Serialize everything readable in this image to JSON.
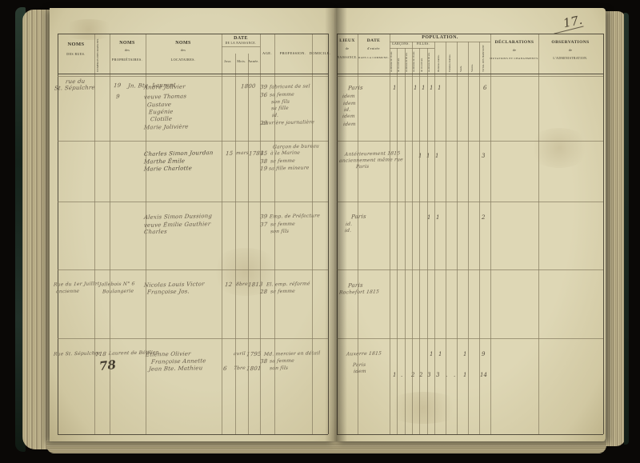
{
  "page_number": "17.",
  "left_headers": {
    "rues1": "NOMS",
    "rues2": "DES RUES.",
    "maisons": "NUMÉROS DES MAISONS.",
    "prop1": "NOMS",
    "prop2": "des",
    "prop3": "PROPRIÉTAIRES.",
    "loc1": "NOMS",
    "loc2": "des",
    "loc3": "LOCATAIRES.",
    "date1": "DATE",
    "date2": "DE LA NAISSANCE.",
    "jour": "Jour.",
    "mois": "Mois.",
    "annee": "Année.",
    "age": "AGE.",
    "profession": "PROFESSION.",
    "domicile": "DOMICILE."
  },
  "right_headers": {
    "lieux1": "LIEUX",
    "lieux2": "de",
    "lieux3": "NAISSANCE.",
    "entree1": "DATE",
    "entree2": "d'entrée",
    "entree3": "DANS LA COMMUNE.",
    "population": "POPULATION.",
    "garcons": "GARÇONS.",
    "filles": "FILLES.",
    "gsub": [
      "au-dessous de 16 ans.",
      "de 16 à 60 ans.",
      "au-dessus de 60 ans."
    ],
    "fsub": [
      "au-dessous de 16 ans.",
      "de 16 à 60 ans.",
      "au-dessus de 60 ans."
    ],
    "etats": [
      "Hommes mariés.",
      "Femmes mariées.",
      "Veufs.",
      "Veuves."
    ],
    "total": "TOTAL DES HABITANTS.",
    "decl1": "DÉCLARATIONS",
    "decl2": "de",
    "decl3": "MUTATIONS ET CHANGEMENTS.",
    "obs1": "OBSERVATIONS",
    "obs2": "de",
    "obs3": "L'ADMINISTRATION."
  },
  "groups": [
    {
      "street1": "rue du",
      "street2": "St. Sépulchre",
      "house": "19",
      "house2": "9",
      "proprietor": "Jn. Bte. Laurent",
      "tenants": [
        "André Jolivier",
        "veuve Thomas",
        "Gustave",
        "Eugénie",
        "Clotille",
        "Marie Jolivière"
      ],
      "annee": "1800",
      "ages": [
        "39",
        "36",
        "29"
      ],
      "professions": [
        "fabricant de sel",
        "sa femme",
        "son fils",
        "sa fille",
        "id.",
        "ouvrière journalière"
      ],
      "birthplaces": [
        "Paris",
        "idem",
        "idem",
        "id.",
        "idem",
        "idem"
      ],
      "marks": [
        "1",
        "1",
        "1",
        "1",
        "1"
      ],
      "total": "6"
    },
    {
      "tenants": [
        "Charles Simon Jourdan",
        "Marthe Émile",
        "Marie Charlotte"
      ],
      "date": [
        "15",
        "mars",
        "1783"
      ],
      "ages": [
        "45",
        "38",
        "19"
      ],
      "professions": [
        "Garçon de bureau",
        "à la Marine",
        "sa femme",
        "sa fille mineure"
      ],
      "notes": [
        "Antérieurement 1815",
        "anciennement même rue",
        "Paris"
      ],
      "marks": [
        "1",
        "1",
        "1"
      ],
      "total": "3"
    },
    {
      "tenants": [
        "Alexis Simon Dussiong",
        "veuve Émilie Gauthier",
        "Charles"
      ],
      "ages": [
        "39",
        "37"
      ],
      "professions": [
        "Emp. de Préfecture",
        "sa femme",
        "son fils"
      ],
      "birthplaces": [
        "Paris",
        "id.",
        "id."
      ],
      "marks": [
        "1",
        "1"
      ],
      "total": "2"
    },
    {
      "street1": "Rue du 1er Juillet",
      "street2": "ancienne",
      "prop1": "Jollebois N° 6",
      "prop2": "Boulangerie",
      "tenants": [
        "Nicolas Louis Victor",
        "Françoise Jos."
      ],
      "date": [
        "12",
        "8bre",
        "1813"
      ],
      "ages": [
        "28"
      ],
      "professions": [
        "El. emp. réformé",
        "sa femme"
      ],
      "birthplaces": [
        "Paris",
        "Rochefort 1815"
      ]
    },
    {
      "street": "Rue St. Sépulchre",
      "house": "118",
      "folio": "78",
      "proprietor": "Laurent de Bétilien",
      "tenants": [
        "Étienne Olivier",
        "Françoise Annette",
        "Jean Bte. Mathieu"
      ],
      "date1": [
        "avril",
        "1795"
      ],
      "date3": [
        "6",
        "7bre",
        "1801"
      ],
      "ages": [
        "38"
      ],
      "professions": [
        "Md. mercier en détail",
        "sa femme",
        "son fils"
      ],
      "birthplaces": [
        "Auxerre 1815",
        "Paris",
        "idem"
      ],
      "marks": [
        "1",
        "1",
        "1"
      ],
      "total": "9"
    }
  ],
  "summary": {
    "values": [
      "1",
      ".",
      "2",
      "2",
      "3",
      "3",
      ".",
      ".",
      "1"
    ],
    "total": "14"
  }
}
